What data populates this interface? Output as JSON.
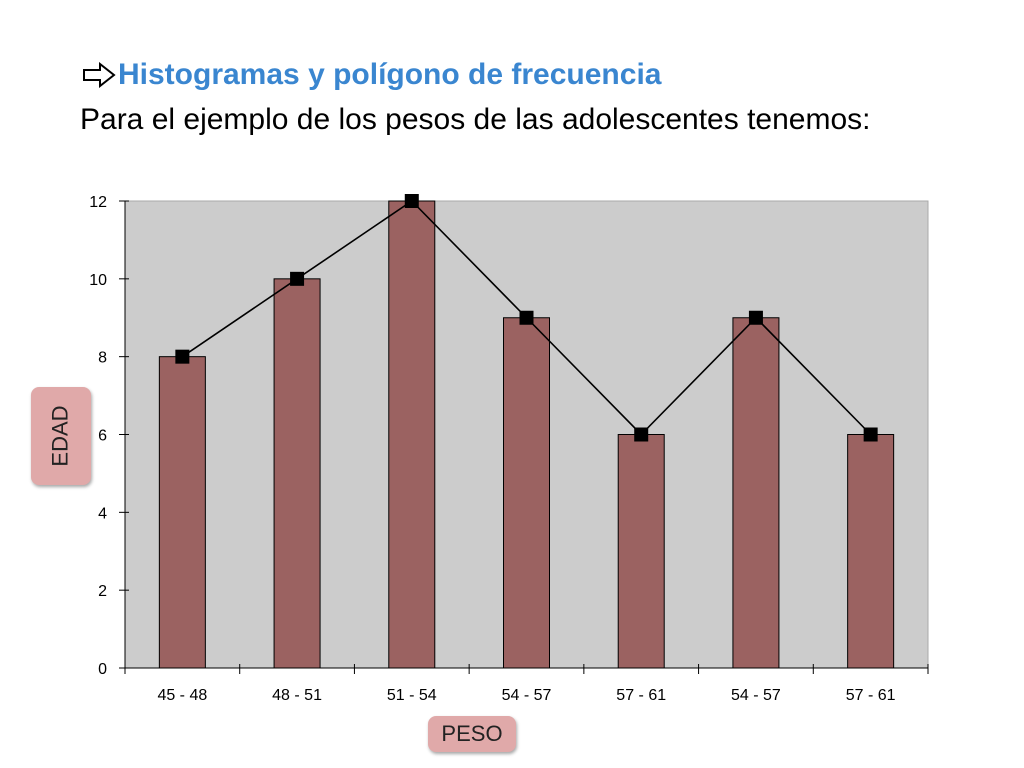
{
  "title": "Histogramas y polígono de frecuencia",
  "subtitle": "Para el ejemplo de los pesos de las adolescentes tenemos:",
  "icons": {
    "bullet": "right-arrow-outline-icon"
  },
  "colors": {
    "title": "#3a86d0",
    "plot_background": "#cccccc",
    "bar_fill": "#9b6261",
    "line": "#000000",
    "axis_box": "#e0a9a9"
  },
  "chart_data": {
    "type": "bar",
    "overlay": "line",
    "categories": [
      "45 - 48",
      "48 - 51",
      "51 - 54",
      "54 - 57",
      "57 - 61",
      "54 - 57",
      "57 - 61"
    ],
    "values": [
      8,
      10,
      12,
      9,
      6,
      9,
      6
    ],
    "xlabel": "PESO",
    "ylabel": "EDAD",
    "ylim": [
      0,
      12
    ],
    "yticks": [
      0,
      2,
      4,
      6,
      8,
      10,
      12
    ],
    "grid": false,
    "legend": "none"
  }
}
